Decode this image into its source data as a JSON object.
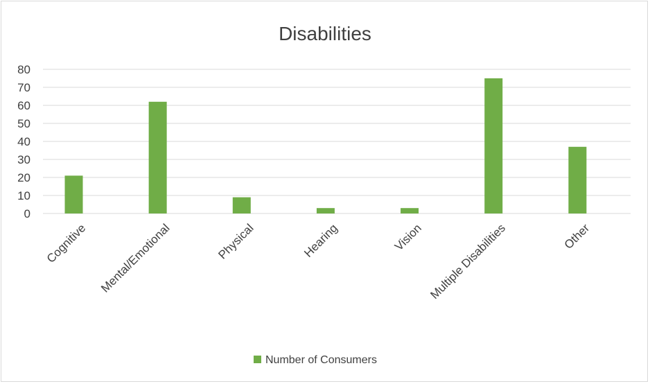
{
  "chart_data": {
    "type": "bar",
    "title": "Disabilities",
    "xlabel": "",
    "ylabel": "",
    "categories": [
      "Cognitive",
      "Mental/Emotional",
      "Physical",
      "Hearing",
      "Vision",
      "Multiple Disabilities",
      "Other"
    ],
    "series": [
      {
        "name": "Number of Consumers",
        "values": [
          21,
          62,
          9,
          3,
          3,
          75,
          37
        ]
      }
    ],
    "ylim": [
      0,
      80
    ],
    "yticks": [
      0,
      10,
      20,
      30,
      40,
      50,
      60,
      70,
      80
    ],
    "grid": true,
    "legend": "bottom",
    "colors": {
      "series": "#70ad47",
      "grid": "#d9d9d9",
      "text": "#404040",
      "border": "#d9d9d9"
    }
  }
}
